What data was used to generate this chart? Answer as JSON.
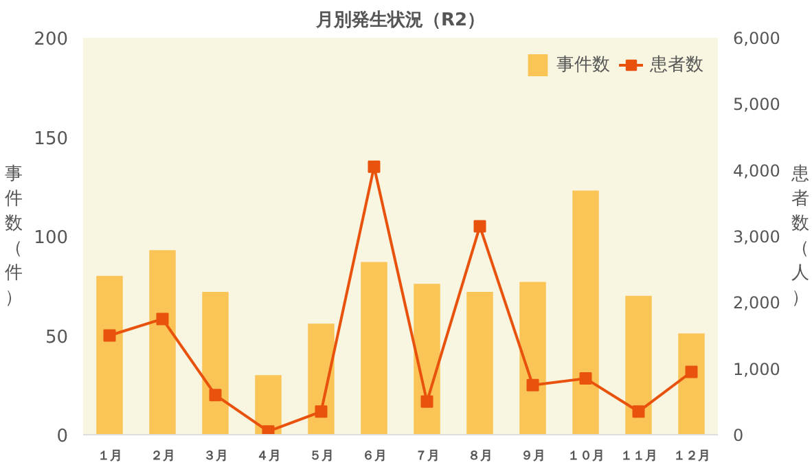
{
  "chart_data": {
    "type": "bar",
    "title": "月別発生状況（R2）",
    "ylabel": "事件数（件）",
    "y2label": "患者数（人）",
    "categories": [
      "１月",
      "２月",
      "３月",
      "４月",
      "５月",
      "６月",
      "７月",
      "８月",
      "９月",
      "１０月",
      "１１月",
      "１２月"
    ],
    "series": [
      {
        "name": "事件数",
        "color": "#fbc457",
        "values": [
          80,
          93,
          72,
          30,
          56,
          87,
          76,
          72,
          77,
          123,
          70,
          51
        ]
      },
      {
        "name": "患者数",
        "type": "line",
        "axis": "y2",
        "color": "#e8520c",
        "marker": "square",
        "values": [
          1500,
          1750,
          600,
          50,
          350,
          4050,
          500,
          3150,
          750,
          850,
          350,
          950
        ]
      }
    ],
    "ylim": [
      0,
      200
    ],
    "yticks": [
      0,
      50,
      100,
      150,
      200
    ],
    "y2lim": [
      0,
      6000
    ],
    "y2ticks": [
      {
        "value": 0,
        "label": "0"
      },
      {
        "value": 1000,
        "label": "1,000"
      },
      {
        "value": 2000,
        "label": "2,000"
      },
      {
        "value": 3000,
        "label": "3,000"
      },
      {
        "value": 4000,
        "label": "4,000"
      },
      {
        "value": 5000,
        "label": "5,000"
      },
      {
        "value": 6000,
        "label": "6,000"
      }
    ],
    "grid": false,
    "legend": "top right"
  }
}
